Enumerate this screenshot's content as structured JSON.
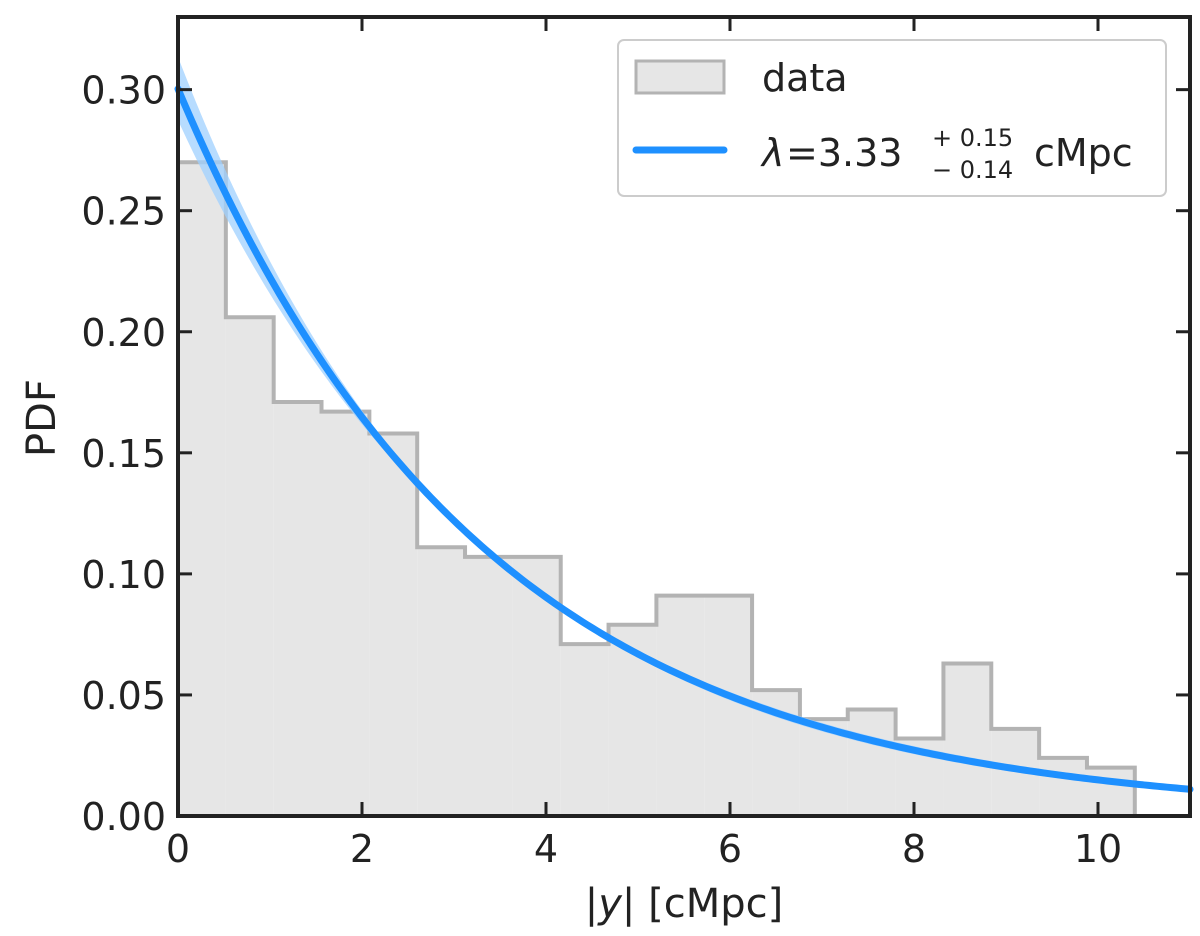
{
  "chart_data": {
    "type": "histogram",
    "xlabel_prefix": "|",
    "xlabel_var": "y",
    "xlabel_suffix": "| [cMpc]",
    "ylabel": "PDF",
    "xlim": [
      0,
      11
    ],
    "ylim": [
      0,
      0.33
    ],
    "xticks": [
      0,
      2,
      4,
      6,
      8,
      10
    ],
    "xtick_labels": [
      "0",
      "2",
      "4",
      "6",
      "8",
      "10"
    ],
    "yticks": [
      0,
      0.05,
      0.1,
      0.15,
      0.2,
      0.25,
      0.3
    ],
    "ytick_labels": [
      "0.00",
      "0.05",
      "0.10",
      "0.15",
      "0.20",
      "0.25",
      "0.30"
    ],
    "grid": false,
    "legend_position": "top-right",
    "histogram": {
      "name": "data",
      "bin_edges": [
        0,
        0.52,
        1.04,
        1.56,
        2.08,
        2.6,
        3.12,
        3.64,
        4.16,
        4.68,
        5.2,
        5.72,
        6.24,
        6.76,
        7.28,
        7.8,
        8.32,
        8.84,
        9.36,
        9.88,
        10.4
      ],
      "values": [
        0.27,
        0.206,
        0.171,
        0.167,
        0.158,
        0.111,
        0.107,
        0.107,
        0.071,
        0.079,
        0.091,
        0.091,
        0.052,
        0.04,
        0.044,
        0.032,
        0.063,
        0.036,
        0.024,
        0.02
      ],
      "fill_color": "#e6e6e6",
      "edge_color": "#b3b3b3"
    },
    "fit": {
      "model": "exponential",
      "lambda": 3.33,
      "lambda_plus": 0.15,
      "lambda_minus": 0.14,
      "color": "#1e90ff",
      "band_color": "#9fd0ff",
      "legend_lambda": "λ",
      "legend_value": "=3.33",
      "legend_plus": "+ 0.15",
      "legend_minus": "− 0.14",
      "legend_unit": "cMpc"
    },
    "legend": {
      "entries": [
        "data"
      ]
    }
  }
}
